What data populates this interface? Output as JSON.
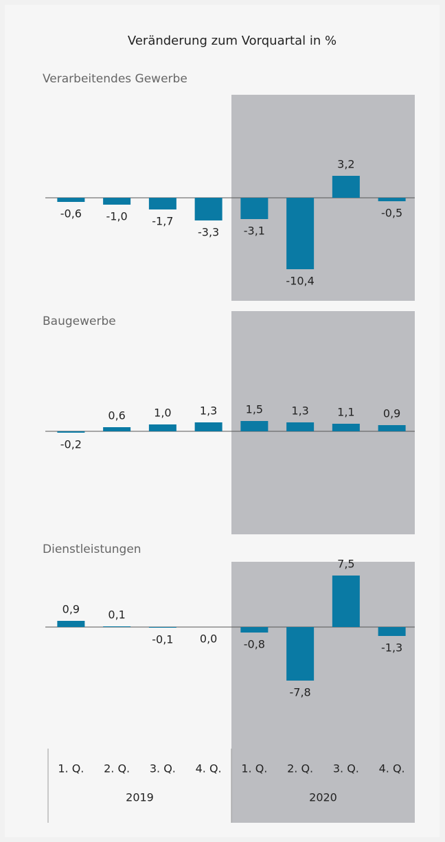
{
  "title": "Veränderung zum Vorquartal in %",
  "x_axis": {
    "categories": [
      "1. Q.",
      "2. Q.",
      "3. Q.",
      "4. Q.",
      "1. Q.",
      "2. Q.",
      "3. Q.",
      "4. Q."
    ],
    "groups": [
      {
        "label": "2019"
      },
      {
        "label": "2020",
        "shaded": true
      }
    ]
  },
  "chart_data": [
    {
      "type": "bar",
      "title": "Verarbeitendes Gewerbe",
      "color": "#0a7aa4",
      "values": [
        -0.6,
        -1.0,
        -1.7,
        -3.3,
        -3.1,
        -10.4,
        3.2,
        -0.5
      ],
      "value_labels": [
        "-0,6",
        "-1,0",
        "-1,7",
        "-3,3",
        "-3,1",
        "-10,4",
        "3,2",
        "-0,5"
      ],
      "ylim": [
        -15,
        15
      ]
    },
    {
      "type": "bar",
      "title": "Baugewerbe",
      "color": "#0a7aa4",
      "values": [
        -0.2,
        0.6,
        1.0,
        1.3,
        1.5,
        1.3,
        1.1,
        0.9
      ],
      "value_labels": [
        "-0,2",
        "0,6",
        "1,0",
        "1,3",
        "1,5",
        "1,3",
        "1,1",
        "0,9"
      ],
      "ylim": [
        -15,
        17.5
      ]
    },
    {
      "type": "bar",
      "title": "Dienstleistungen",
      "color": "#0a7aa4",
      "values": [
        0.9,
        0.1,
        -0.1,
        0.0,
        -0.8,
        -7.8,
        7.5,
        -1.3
      ],
      "value_labels": [
        "0,9",
        "0,1",
        "-0,1",
        "0,0",
        "-0,8",
        "-7,8",
        "7,5",
        "-1,3"
      ],
      "ylim": [
        -16.5,
        9.5
      ]
    }
  ]
}
